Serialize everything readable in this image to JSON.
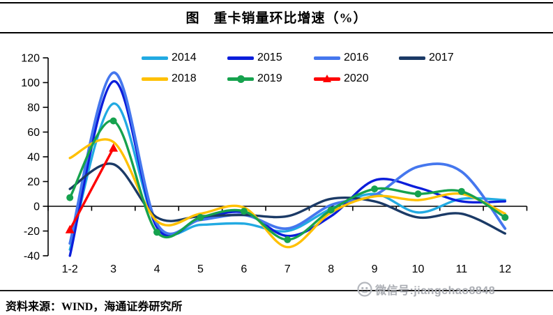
{
  "header": {
    "title": "图　重卡销量环比增速（%）"
  },
  "footer": {
    "source": "资料来源：WIND，海通证券研究所"
  },
  "watermark": {
    "icon": "wechat-icon",
    "text": "微信号:jiangchao8848",
    "color": "#aaadb3"
  },
  "chart_data": {
    "type": "line",
    "title": "重卡销量环比增速（%）",
    "xlabel": "",
    "ylabel": "",
    "categories": [
      "1-2",
      "3",
      "4",
      "5",
      "6",
      "7",
      "8",
      "9",
      "10",
      "11",
      "12"
    ],
    "y_ticks": [
      120,
      100,
      80,
      60,
      40,
      20,
      0,
      -20,
      -40
    ],
    "ylim": [
      -40,
      120
    ],
    "grid": false,
    "smooth_lines": true,
    "legend_position": "top",
    "series": [
      {
        "name": "2014",
        "color": "#22AAE2",
        "marker": "none",
        "values": [
          -35,
          83,
          -16,
          -15,
          -14,
          -20,
          -2,
          10,
          -5,
          6,
          5
        ]
      },
      {
        "name": "2015",
        "color": "#0B1EDB",
        "marker": "none",
        "values": [
          -40,
          101,
          -17,
          -10,
          -5,
          -24,
          -8,
          21,
          15,
          4,
          4
        ]
      },
      {
        "name": "2016",
        "color": "#4577EE",
        "marker": "none",
        "values": [
          -30,
          108,
          -14,
          -11,
          -7,
          -18,
          1,
          9,
          32,
          28,
          -18
        ]
      },
      {
        "name": "2017",
        "color": "#1B3A66",
        "marker": "none",
        "values": [
          14,
          34,
          -9,
          -8,
          -7,
          -8,
          6,
          4,
          -9,
          -6,
          -22
        ]
      },
      {
        "name": "2018",
        "color": "#FFC000",
        "marker": "none",
        "values": [
          39,
          52,
          -12,
          -6,
          -1,
          -33,
          -5,
          8,
          5,
          10,
          -6
        ]
      },
      {
        "name": "2019",
        "color": "#16A24E",
        "marker": "circle",
        "values": [
          7,
          69,
          -21,
          -9,
          -4,
          -27,
          -3,
          14,
          10,
          12,
          -9
        ]
      },
      {
        "name": "2020",
        "color": "#FE0000",
        "marker": "triangle",
        "values": [
          -19,
          47
        ]
      }
    ]
  }
}
